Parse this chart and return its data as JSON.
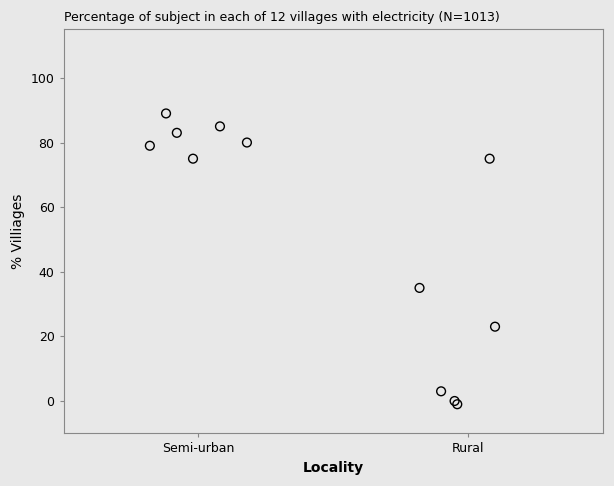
{
  "title": "Percentage of subject in each of 12 villages with electricity (N=1013)",
  "xlabel": "Locality",
  "ylabel": "% Villiages",
  "x_categories": [
    "Semi-urban",
    "Rural"
  ],
  "x_tick_positions": [
    1,
    2
  ],
  "semi_urban_x": [
    0.82,
    0.88,
    0.92,
    0.98,
    1.08,
    1.18
  ],
  "semi_urban_y": [
    79,
    89,
    83,
    75,
    85,
    80
  ],
  "rural_x": [
    1.82,
    1.9,
    1.95,
    1.96,
    2.08,
    2.1
  ],
  "rural_y": [
    35,
    3,
    0,
    -1,
    75,
    23
  ],
  "ylim": [
    -10,
    115
  ],
  "xlim": [
    0.5,
    2.5
  ],
  "yticks": [
    0,
    20,
    40,
    60,
    80,
    100
  ],
  "marker_facecolor": "none",
  "marker_edge_color": "#000000",
  "marker_size": 40,
  "background_color": "#e8e8e8",
  "fig_facecolor": "#e8e8e8",
  "title_fontsize": 9,
  "axis_label_fontsize": 10,
  "tick_fontsize": 9,
  "spine_color": "#888888"
}
